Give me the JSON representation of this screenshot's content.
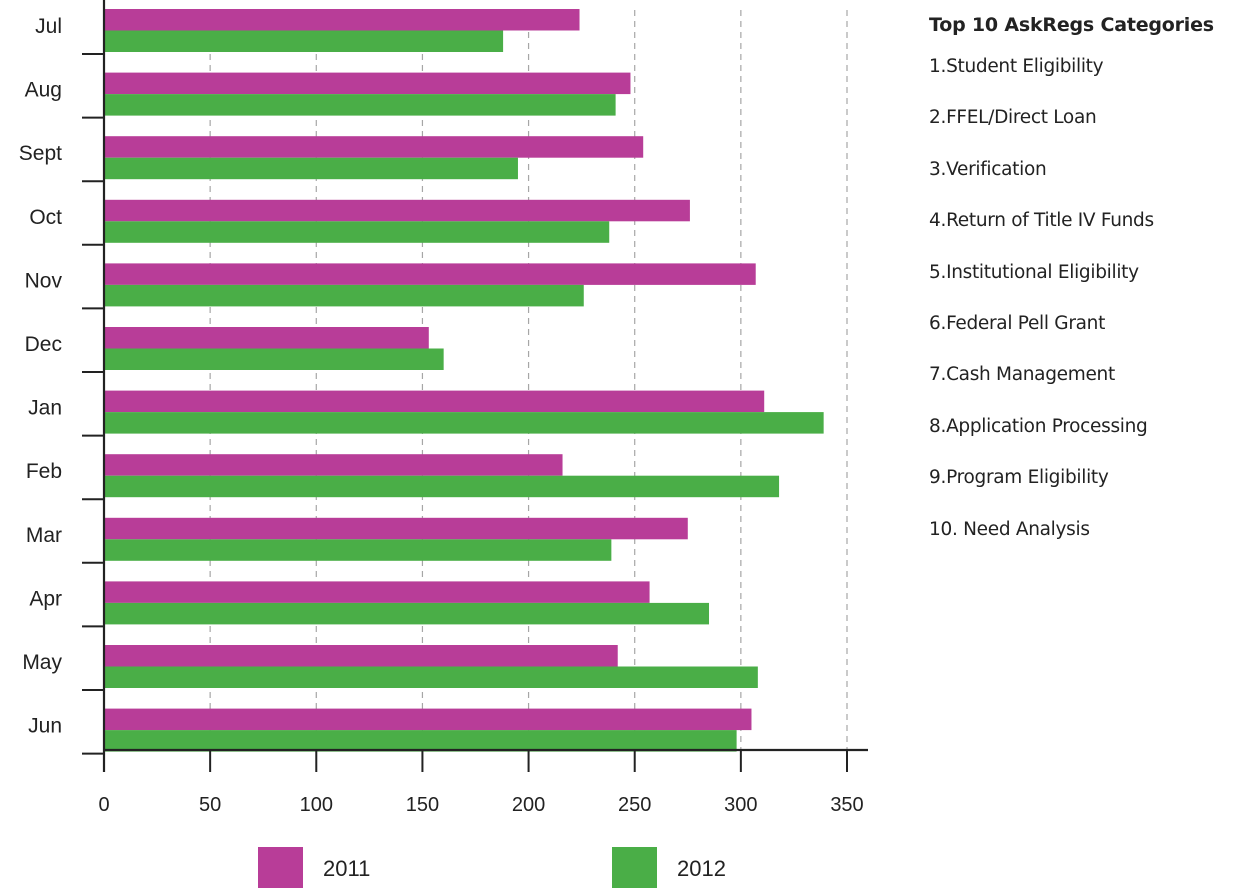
{
  "chart_data": {
    "type": "bar",
    "orientation": "horizontal",
    "categories": [
      "Jul",
      "Aug",
      "Sept",
      "Oct",
      "Nov",
      "Dec",
      "Jan",
      "Feb",
      "Mar",
      "Apr",
      "May",
      "Jun"
    ],
    "series": [
      {
        "name": "2011",
        "color": "#b83d98",
        "values": [
          224,
          248,
          254,
          276,
          307,
          153,
          311,
          216,
          275,
          257,
          242,
          305
        ]
      },
      {
        "name": "2012",
        "color": "#4aae47",
        "values": [
          188,
          241,
          195,
          238,
          226,
          160,
          339,
          318,
          239,
          285,
          308,
          298
        ]
      }
    ],
    "xlim": [
      0,
      350
    ],
    "xticks": [
      "0",
      "50",
      "100",
      "150",
      "200",
      "250",
      "300",
      "350"
    ],
    "grid": "vertical dashed",
    "legend": "bottom"
  },
  "side_panel": {
    "title": "Top 10 AskRegs Categories",
    "items": [
      {
        "num": "1.",
        "label": "Student Eligibility"
      },
      {
        "num": "2.",
        "label": "FFEL/Direct Loan"
      },
      {
        "num": "3.",
        "label": "Verification"
      },
      {
        "num": "4.",
        "label": "Return of Title IV Funds"
      },
      {
        "num": "5.",
        "label": "Institutional Eligibility"
      },
      {
        "num": "6.",
        "label": "Federal Pell Grant"
      },
      {
        "num": "7.",
        "label": "Cash Management"
      },
      {
        "num": "8.",
        "label": "Application Processing"
      },
      {
        "num": "9.",
        "label": "Program Eligibility"
      },
      {
        "num": "10.",
        "label": "Need Analysis"
      }
    ]
  }
}
